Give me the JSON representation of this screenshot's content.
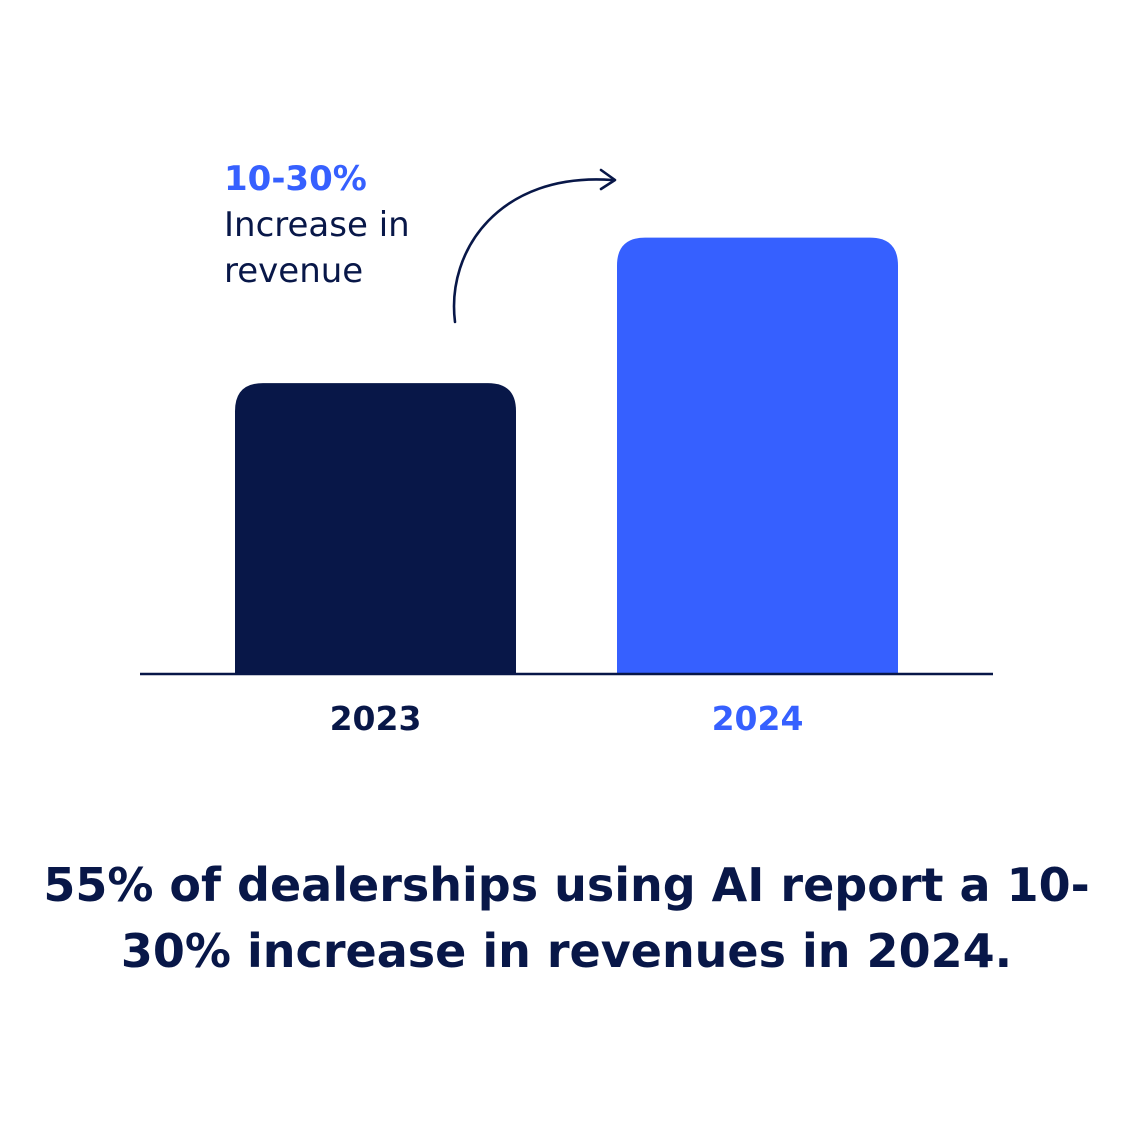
{
  "colors": {
    "dark": "#081748",
    "accent": "#3660FF",
    "axis": "#081748",
    "background": "#FFFFFF"
  },
  "annotation": {
    "value": "10-30%",
    "text": "Increase in revenue",
    "arrow_icon": "curved-arrow-icon"
  },
  "caption": "55% of dealerships using AI report a 10-30% increase in revenues in 2024.",
  "chart_data": {
    "type": "bar",
    "categories": [
      "2023",
      "2024"
    ],
    "values": [
      100,
      150
    ],
    "bar_colors": [
      "#081748",
      "#3660FF"
    ],
    "label_colors": [
      "#081748",
      "#3660FF"
    ],
    "ylim": [
      0,
      165
    ],
    "grid": false,
    "y_axis_shown": false,
    "title": "",
    "xlabel": "",
    "ylabel": ""
  }
}
